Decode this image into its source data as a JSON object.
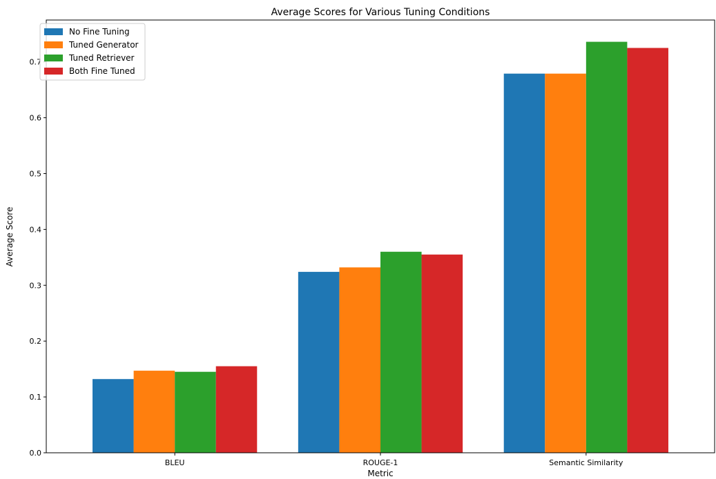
{
  "chart_data": {
    "type": "bar",
    "title": "Average Scores for Various Tuning Conditions",
    "xlabel": "Metric",
    "ylabel": "Average Score",
    "categories": [
      "BLEU",
      "ROUGE-1",
      "Semantic Similarity"
    ],
    "ylim": [
      0,
      0.775
    ],
    "yticks": [
      "0.0",
      "0.1",
      "0.2",
      "0.3",
      "0.4",
      "0.5",
      "0.6",
      "0.7"
    ],
    "grid": false,
    "legend_position": "top-left",
    "series": [
      {
        "name": "No Fine Tuning",
        "color": "#1f77b4",
        "values": [
          0.132,
          0.324,
          0.679
        ]
      },
      {
        "name": "Tuned Generator",
        "color": "#ff7f0e",
        "values": [
          0.147,
          0.332,
          0.679
        ]
      },
      {
        "name": "Tuned Retriever",
        "color": "#2ca02c",
        "values": [
          0.145,
          0.36,
          0.736
        ]
      },
      {
        "name": "Both Fine Tuned",
        "color": "#d62728",
        "values": [
          0.155,
          0.355,
          0.725
        ]
      }
    ]
  }
}
